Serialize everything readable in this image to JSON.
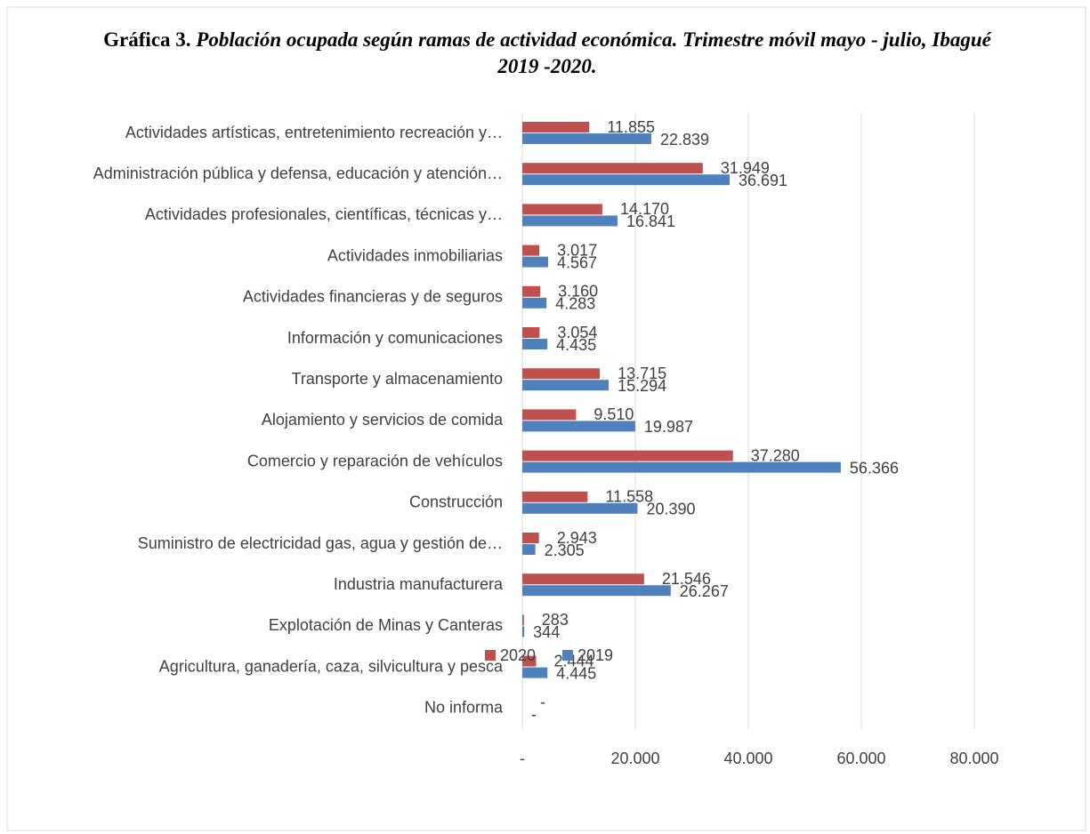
{
  "chart_data": {
    "type": "bar",
    "orientation": "horizontal",
    "title_prefix": "Gráfica 3.",
    "title": "Población ocupada según ramas de actividad económica. Trimestre móvil mayo - julio, Ibagué 2019 -2020.",
    "categories": [
      "Actividades artísticas, entretenimiento recreación y…",
      "Administración pública y defensa, educación y atención…",
      "Actividades profesionales, científicas, técnicas y…",
      "Actividades inmobiliarias",
      "Actividades financieras y de seguros",
      "Información y comunicaciones",
      "Transporte y almacenamiento",
      "Alojamiento y servicios de comida",
      "Comercio y reparación de vehículos",
      "Construcción",
      "Suministro de electricidad gas, agua y gestión de…",
      "Industria manufacturera",
      "Explotación de Minas y Canteras",
      "Agricultura, ganadería, caza, silvicultura y pesca",
      "No informa"
    ],
    "series": [
      {
        "name": "2020",
        "color": "#c0504d",
        "values": [
          11855,
          31949,
          14170,
          3017,
          3160,
          3054,
          13715,
          9510,
          37280,
          11558,
          2943,
          21546,
          283,
          2444,
          0
        ],
        "value_labels": [
          "11.855",
          "31.949",
          "14.170",
          "3.017",
          "3.160",
          "3.054",
          "13.715",
          "9.510",
          "37.280",
          "11.558",
          "2.943",
          "21.546",
          "283",
          "2.444",
          "-"
        ]
      },
      {
        "name": "2019",
        "color": "#4f81bd",
        "values": [
          22839,
          36691,
          16841,
          4567,
          4283,
          4435,
          15294,
          19987,
          56366,
          20390,
          2305,
          26267,
          344,
          4445,
          0
        ],
        "value_labels": [
          "22.839",
          "36.691",
          "16.841",
          "4.567",
          "4.283",
          "4.435",
          "15.294",
          "19.987",
          "56.366",
          "20.390",
          "2.305",
          "26.267",
          "344",
          "4.445",
          "-"
        ]
      }
    ],
    "xlim": [
      0,
      80000
    ],
    "xticks": [
      {
        "value": 0,
        "label": "-"
      },
      {
        "value": 20000,
        "label": "20.000"
      },
      {
        "value": 40000,
        "label": "40.000"
      },
      {
        "value": 60000,
        "label": "60.000"
      },
      {
        "value": 80000,
        "label": "80.000"
      }
    ],
    "grid": true,
    "legend": "bottom"
  }
}
